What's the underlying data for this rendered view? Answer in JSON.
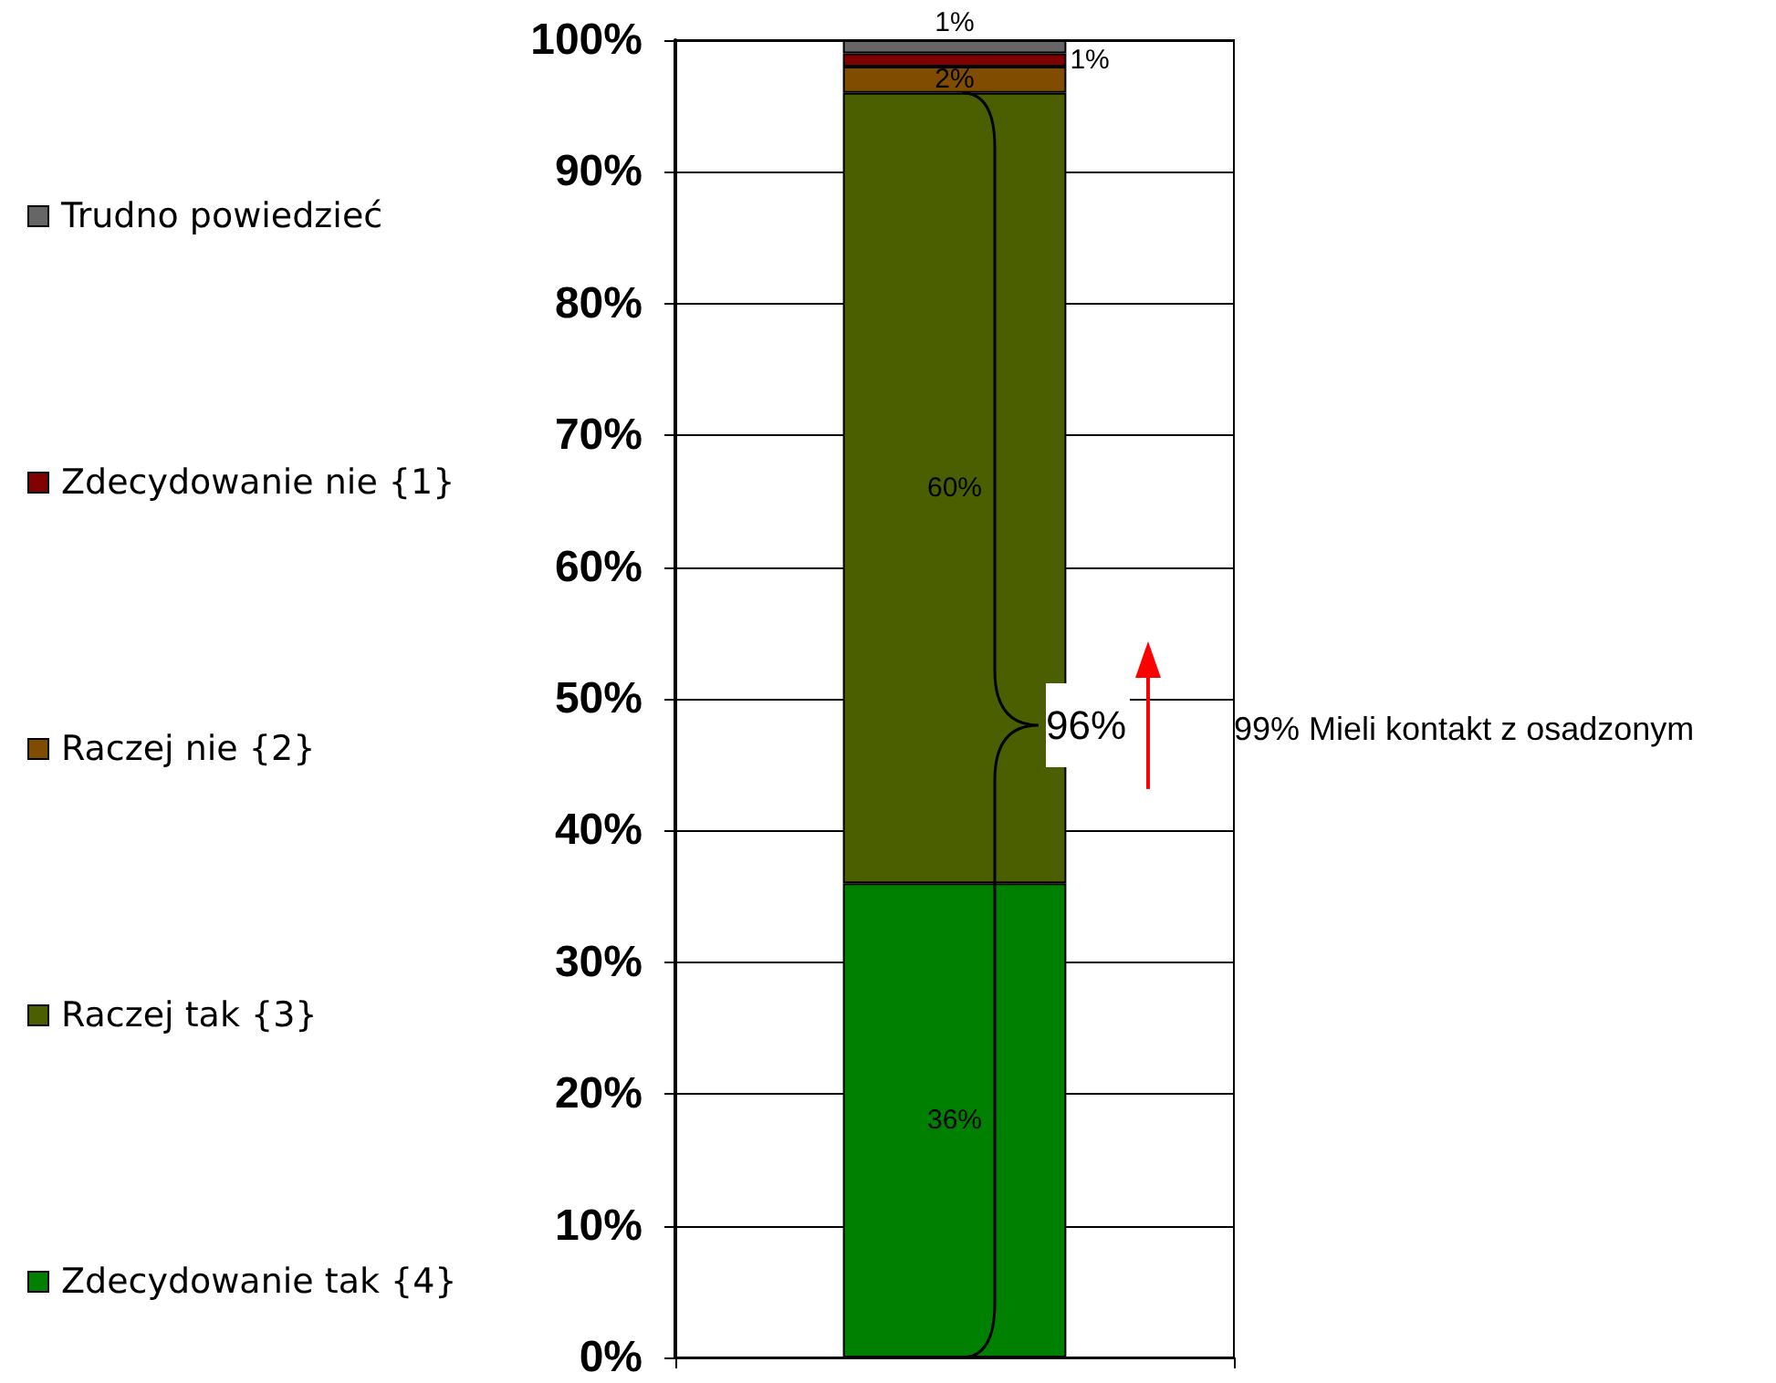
{
  "chart_data": {
    "type": "bar",
    "stacked": true,
    "categories": [
      null
    ],
    "series": [
      {
        "name": "Zdecydowanie tak {4}",
        "color": "#008000",
        "values": [
          36
        ],
        "value_labels": [
          "36%"
        ]
      },
      {
        "name": "Raczej tak {3}",
        "color": "#4c5f00",
        "values": [
          60
        ],
        "value_labels": [
          "60%"
        ]
      },
      {
        "name": "Raczej nie {2}",
        "color": "#7f4c00",
        "values": [
          2
        ],
        "value_labels": [
          "2%"
        ]
      },
      {
        "name": "Zdecydowanie nie {1}",
        "color": "#800000",
        "values": [
          1
        ],
        "value_labels": [
          "1%"
        ]
      },
      {
        "name": "Trudno powiedzieć",
        "color": "#666666",
        "values": [
          1
        ],
        "value_labels": [
          "1%"
        ]
      }
    ],
    "ylim": [
      0,
      100
    ],
    "yticks": [
      {
        "value": 0,
        "label": "0%"
      },
      {
        "value": 10,
        "label": "10%"
      },
      {
        "value": 20,
        "label": "20%"
      },
      {
        "value": 30,
        "label": "30%"
      },
      {
        "value": 40,
        "label": "40%"
      },
      {
        "value": 50,
        "label": "50%"
      },
      {
        "value": 60,
        "label": "60%"
      },
      {
        "value": 70,
        "label": "70%"
      },
      {
        "value": 80,
        "label": "80%"
      },
      {
        "value": 90,
        "label": "90%"
      },
      {
        "value": 100,
        "label": "100%"
      }
    ],
    "grid": "y",
    "legend": "left",
    "annotations": [
      "96%",
      "99% Mieli kontakt z osadzonym"
    ]
  }
}
